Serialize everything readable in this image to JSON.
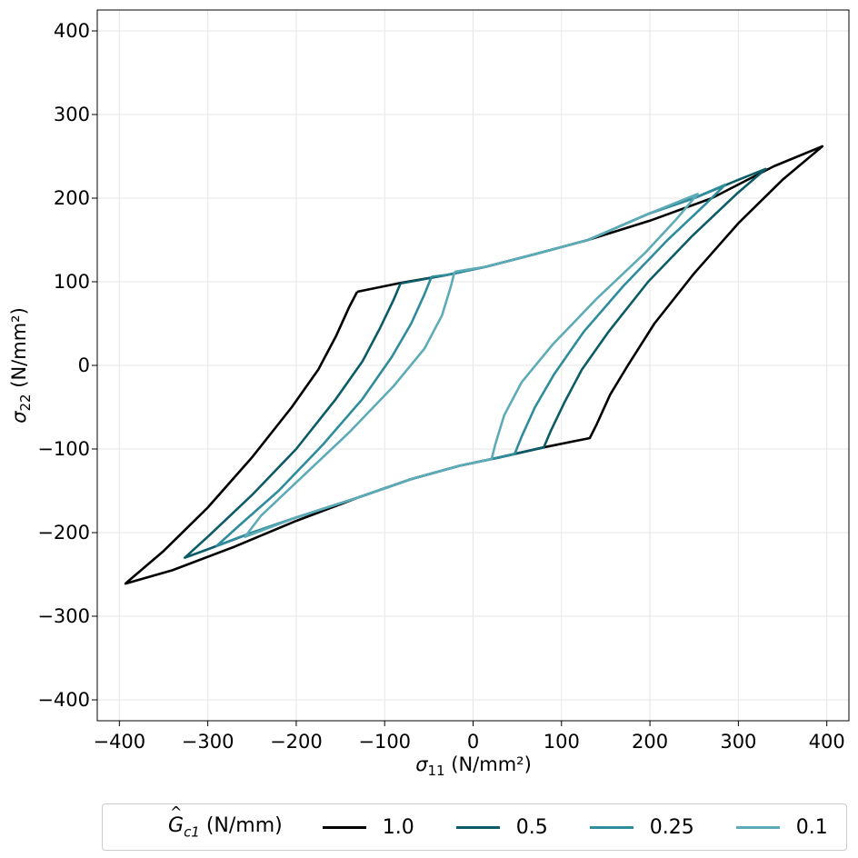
{
  "chart_data": {
    "type": "line",
    "xlabel": "σ11 (N/mm²)",
    "ylabel": "σ22 (N/mm²)",
    "xlim": [
      -425,
      425
    ],
    "ylim": [
      -425,
      425
    ],
    "xticks": [
      -400,
      -300,
      -200,
      -100,
      0,
      100,
      200,
      300,
      400
    ],
    "yticks": [
      -400,
      -300,
      -200,
      -100,
      0,
      100,
      200,
      300,
      400
    ],
    "xtick_labels": [
      "−400",
      "−300",
      "−200",
      "−100",
      "0",
      "100",
      "200",
      "300",
      "400"
    ],
    "ytick_labels": [
      "−400",
      "−300",
      "−200",
      "−100",
      "0",
      "100",
      "200",
      "300",
      "400"
    ],
    "grid": true,
    "legend_position": "bottom-center, below axes",
    "legend_title": "Ĝc1 (N/mm)",
    "series": [
      {
        "name": "1.0",
        "color": "#000000",
        "points": [
          [
            -131,
            88
          ],
          [
            -140,
            70
          ],
          [
            -155,
            35
          ],
          [
            -175,
            -5
          ],
          [
            -205,
            -50
          ],
          [
            -250,
            -110
          ],
          [
            -300,
            -170
          ],
          [
            -350,
            -222
          ],
          [
            -390,
            -258
          ],
          [
            -393,
            -261
          ],
          [
            -340,
            -245
          ],
          [
            -270,
            -217
          ],
          [
            -200,
            -186
          ],
          [
            -130,
            -158
          ],
          [
            -70,
            -136
          ],
          [
            -15,
            -120
          ],
          [
            30,
            -110
          ],
          [
            80,
            -98
          ],
          [
            132,
            -87
          ],
          [
            140,
            -70
          ],
          [
            155,
            -35
          ],
          [
            175,
            0
          ],
          [
            205,
            50
          ],
          [
            250,
            110
          ],
          [
            300,
            170
          ],
          [
            350,
            222
          ],
          [
            395,
            262
          ],
          [
            340,
            238
          ],
          [
            270,
            200
          ],
          [
            200,
            173
          ],
          [
            130,
            150
          ],
          [
            70,
            133
          ],
          [
            15,
            118
          ],
          [
            -30,
            108
          ],
          [
            -80,
            99
          ],
          [
            -131,
            88
          ]
        ]
      },
      {
        "name": "0.5",
        "color": "#0b5c66",
        "points": [
          [
            -82,
            98
          ],
          [
            -90,
            78
          ],
          [
            -105,
            45
          ],
          [
            -125,
            5
          ],
          [
            -155,
            -40
          ],
          [
            -200,
            -100
          ],
          [
            -250,
            -155
          ],
          [
            -300,
            -205
          ],
          [
            -326,
            -230
          ],
          [
            -300,
            -220
          ],
          [
            -250,
            -200
          ],
          [
            -200,
            -182
          ],
          [
            -130,
            -158
          ],
          [
            -70,
            -136
          ],
          [
            -15,
            -120
          ],
          [
            30,
            -110
          ],
          [
            80,
            -98
          ],
          [
            88,
            -78
          ],
          [
            103,
            -45
          ],
          [
            123,
            -5
          ],
          [
            153,
            40
          ],
          [
            198,
            100
          ],
          [
            248,
            155
          ],
          [
            298,
            205
          ],
          [
            331,
            235
          ],
          [
            300,
            222
          ],
          [
            250,
            200
          ],
          [
            200,
            182
          ],
          [
            130,
            150
          ],
          [
            70,
            133
          ],
          [
            15,
            118
          ],
          [
            -30,
            108
          ],
          [
            -82,
            98
          ]
        ]
      },
      {
        "name": "0.25",
        "color": "#2e8c9c",
        "points": [
          [
            -47,
            106
          ],
          [
            -55,
            85
          ],
          [
            -70,
            50
          ],
          [
            -92,
            10
          ],
          [
            -125,
            -40
          ],
          [
            -170,
            -95
          ],
          [
            -220,
            -150
          ],
          [
            -265,
            -192
          ],
          [
            -290,
            -216
          ],
          [
            -250,
            -200
          ],
          [
            -200,
            -182
          ],
          [
            -130,
            -158
          ],
          [
            -70,
            -136
          ],
          [
            -15,
            -120
          ],
          [
            30,
            -110
          ],
          [
            47,
            -106
          ],
          [
            55,
            -85
          ],
          [
            70,
            -50
          ],
          [
            92,
            -10
          ],
          [
            125,
            40
          ],
          [
            170,
            95
          ],
          [
            220,
            150
          ],
          [
            262,
            192
          ],
          [
            285,
            216
          ],
          [
            250,
            200
          ],
          [
            200,
            182
          ],
          [
            130,
            150
          ],
          [
            70,
            133
          ],
          [
            15,
            118
          ],
          [
            -30,
            108
          ],
          [
            -47,
            106
          ]
        ]
      },
      {
        "name": "0.1",
        "color": "#5eabb8",
        "points": [
          [
            -21,
            112
          ],
          [
            -25,
            95
          ],
          [
            -35,
            60
          ],
          [
            -55,
            20
          ],
          [
            -90,
            -25
          ],
          [
            -140,
            -80
          ],
          [
            -195,
            -135
          ],
          [
            -240,
            -180
          ],
          [
            -258,
            -205
          ],
          [
            -200,
            -182
          ],
          [
            -130,
            -158
          ],
          [
            -70,
            -136
          ],
          [
            -15,
            -120
          ],
          [
            21,
            -112
          ],
          [
            25,
            -95
          ],
          [
            35,
            -60
          ],
          [
            55,
            -20
          ],
          [
            90,
            25
          ],
          [
            140,
            80
          ],
          [
            195,
            135
          ],
          [
            230,
            175
          ],
          [
            254,
            205
          ],
          [
            200,
            182
          ],
          [
            130,
            150
          ],
          [
            70,
            133
          ],
          [
            15,
            118
          ],
          [
            -21,
            112
          ]
        ]
      }
    ]
  }
}
